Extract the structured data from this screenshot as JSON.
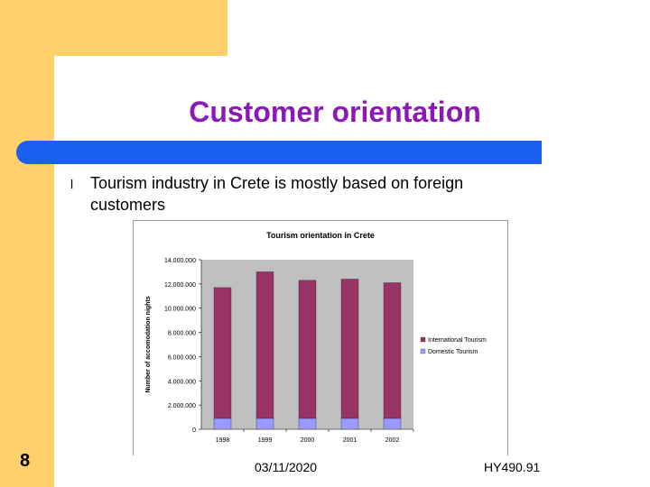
{
  "slide": {
    "title": "Customer orientation",
    "bullet": "Tourism industry in Crete is mostly based on foreign customers",
    "page_number": "8",
    "footer_date": "03/11/2020",
    "footer_code": "HY490.91"
  },
  "colors": {
    "title": "#8a1ab8",
    "accent_bar": "#1a5ff0",
    "side_band": "#fdd06c",
    "international": "#993366",
    "domestic": "#9999ff",
    "plot_bg": "#c0c0c0"
  },
  "chart_data": {
    "type": "bar",
    "stacked": true,
    "title": "Tourism orientation in Crete",
    "xlabel": "",
    "ylabel": "Number of accomodation nights",
    "categories": [
      "1998",
      "1999",
      "2000",
      "2001",
      "2002"
    ],
    "series": [
      {
        "name": "Domestic Tourism",
        "values": [
          900000,
          900000,
          900000,
          900000,
          900000
        ]
      },
      {
        "name": "International Tourism",
        "values": [
          10800000,
          12100000,
          11400000,
          11500000,
          11200000
        ]
      }
    ],
    "ylim": [
      0,
      14000000
    ],
    "yticks": [
      {
        "value": 0,
        "label": "0"
      },
      {
        "value": 2000000,
        "label": "2.000.000"
      },
      {
        "value": 4000000,
        "label": "4.000.000"
      },
      {
        "value": 6000000,
        "label": "6.000.000"
      },
      {
        "value": 8000000,
        "label": "8.000.000"
      },
      {
        "value": 10000000,
        "label": "10.000.000"
      },
      {
        "value": 12000000,
        "label": "12.000.000"
      },
      {
        "value": 14000000,
        "label": "14.000.000"
      }
    ],
    "legend": {
      "position": "right",
      "entries": [
        "International Tourism",
        "Domestic Tourism"
      ]
    },
    "grid": false
  }
}
